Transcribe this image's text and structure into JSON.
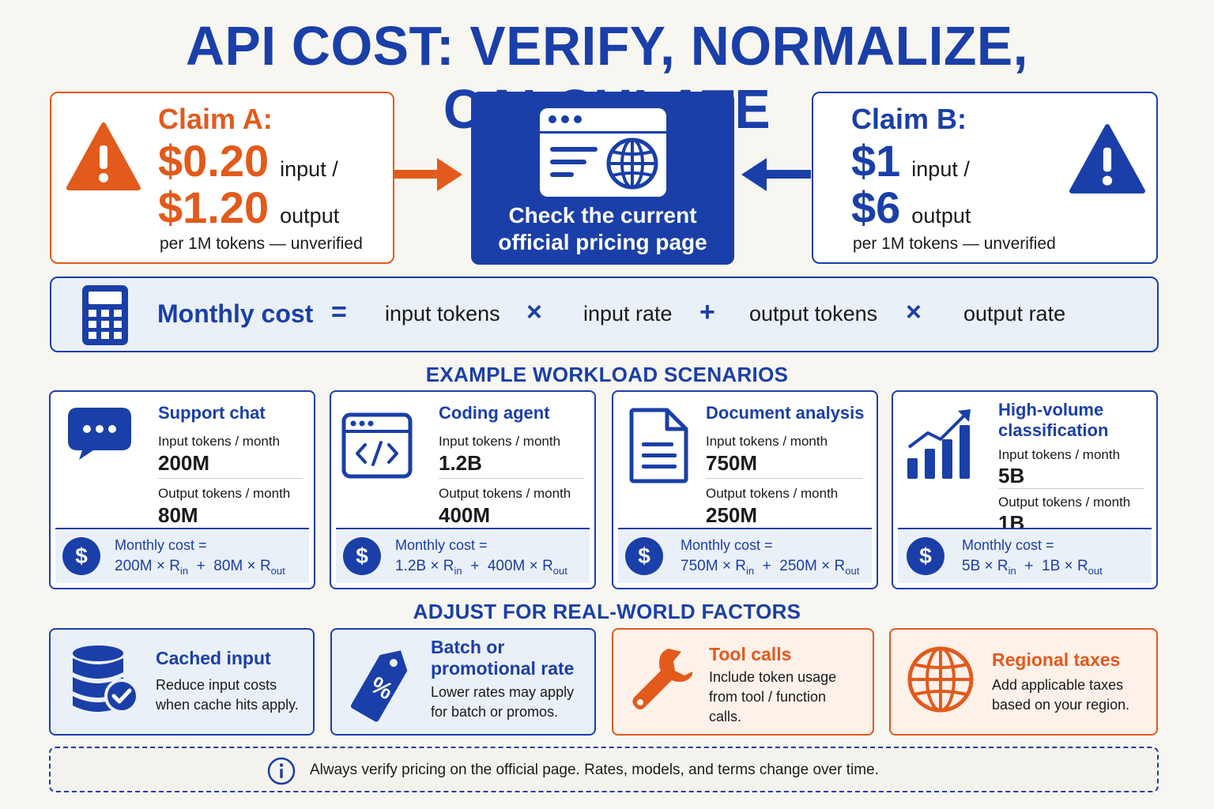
{
  "title": "API COST: VERIFY, NORMALIZE, CALCULATE",
  "claim_a": {
    "title": "Claim A:",
    "input_price": "$0.20",
    "input_unit": "input /",
    "output_price": "$1.20",
    "output_unit": "output",
    "note": "per 1M tokens — unverified",
    "icon": "warning-icon",
    "color": "#e25a1c"
  },
  "check": {
    "line1": "Check the current",
    "line2": "official pricing page",
    "icon": "browser-globe-icon"
  },
  "claim_b": {
    "title": "Claim B:",
    "input_price": "$1",
    "input_unit": "input /",
    "output_price": "$6",
    "output_unit": "output",
    "note": "per 1M tokens — unverified",
    "icon": "warning-icon",
    "color": "#1a3fa8"
  },
  "formula": {
    "icon": "calculator-icon",
    "label": "Monthly cost",
    "equals": "=",
    "input_tokens": "input tokens",
    "times1": "×",
    "input_rate": "input rate",
    "plus": "+",
    "output_tokens": "output tokens",
    "times2": "×",
    "output_rate": "output rate"
  },
  "scenarios_heading": "EXAMPLE WORKLOAD SCENARIOS",
  "scenarios": [
    {
      "title": "Support chat",
      "icon": "chat-bubble-icon",
      "input_label": "Input tokens / month",
      "input_value": "200M",
      "output_label": "Output tokens / month",
      "output_value": "80M",
      "monthly_label": "Monthly cost =",
      "in_amount": "200M",
      "out_amount": "80M"
    },
    {
      "title": "Coding agent",
      "icon": "code-window-icon",
      "input_label": "Input tokens / month",
      "input_value": "1.2B",
      "output_label": "Output tokens / month",
      "output_value": "400M",
      "monthly_label": "Monthly cost =",
      "in_amount": "1.2B",
      "out_amount": "400M"
    },
    {
      "title": "Document analysis",
      "icon": "document-icon",
      "input_label": "Input tokens / month",
      "input_value": "750M",
      "output_label": "Output tokens / month",
      "output_value": "250M",
      "monthly_label": "Monthly cost =",
      "in_amount": "750M",
      "out_amount": "250M"
    },
    {
      "title_line1": "High-volume",
      "title_line2": "classification",
      "icon": "bar-chart-growth-icon",
      "input_label": "Input tokens / month",
      "input_value": "5B",
      "output_label": "Output tokens / month",
      "output_value": "1B",
      "monthly_label": "Monthly cost =",
      "in_amount": "5B",
      "out_amount": "1B"
    }
  ],
  "rate_symbol": "R",
  "rate_in_sub": "in",
  "rate_out_sub": "out",
  "currency_symbol": "$",
  "op_times": "×",
  "op_plus": "+",
  "factors_heading": "ADJUST FOR REAL-WORLD FACTORS",
  "factors": [
    {
      "title": "Cached input",
      "desc_line1": "Reduce input costs",
      "desc_line2": "when cache hits apply.",
      "icon": "database-check-icon"
    },
    {
      "title_line1": "Batch or",
      "title_line2": "promotional rate",
      "desc_line1": "Lower rates may apply",
      "desc_line2": "for batch or promos.",
      "icon": "discount-tag-icon"
    },
    {
      "title": "Tool calls",
      "desc_line1": "Include token usage",
      "desc_line2": "from tool / function",
      "desc_line3": "calls.",
      "icon": "wrench-icon"
    },
    {
      "title": "Regional taxes",
      "desc_line1": "Add applicable taxes",
      "desc_line2": "based on your region.",
      "icon": "globe-icon"
    }
  ],
  "note": {
    "icon": "info-icon",
    "text": "Always verify pricing on the official page. Rates, models, and terms change over time."
  },
  "colors": {
    "blue": "#1a3fa8",
    "orange": "#e25a1c",
    "light_blue_bg": "#eaf0f8",
    "light_orange_bg": "#fdf1ea",
    "page_bg": "#f8f6f1"
  }
}
